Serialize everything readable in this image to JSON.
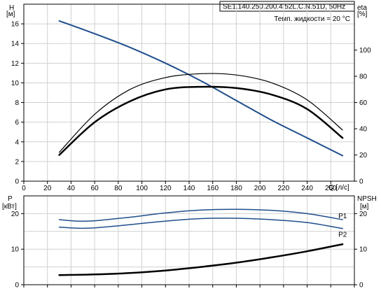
{
  "chart_data": [
    {
      "type": "line",
      "title": "SE1.140.250.200.4.52L.C.N.51D, 50Hz",
      "annotation": "Темп. жидкости = 20 °C",
      "left_axis": {
        "label_top": "H",
        "label_unit": "[м]",
        "range": [
          0,
          18
        ],
        "ticks": [
          "0",
          "2",
          "4",
          "6",
          "8",
          "10",
          "12",
          "14",
          "16"
        ]
      },
      "right_axis": {
        "label_top": "eta",
        "label_unit": "[%]",
        "range": [
          0,
          135
        ],
        "ticks": [
          "0",
          "20",
          "40",
          "60",
          "80",
          "100"
        ]
      },
      "x_axis": {
        "label": "Q [л/с]",
        "range": [
          0,
          280
        ],
        "ticks": [
          "0",
          "20",
          "40",
          "60",
          "80",
          "100",
          "120",
          "140",
          "160",
          "180",
          "200",
          "220",
          "240",
          "260"
        ]
      },
      "grid": true,
      "series": [
        {
          "axis": "left",
          "color": "#1f4e8c",
          "width": 2,
          "x": [
            30,
            60,
            90,
            120,
            150,
            180,
            210,
            240,
            270
          ],
          "y": [
            16.3,
            15.0,
            13.6,
            12.0,
            10.2,
            8.2,
            6.2,
            4.4,
            2.6
          ]
        },
        {
          "axis": "right",
          "color": "#000000",
          "width": 1.2,
          "x": [
            30,
            60,
            90,
            120,
            150,
            180,
            210,
            240,
            270
          ],
          "y": [
            22,
            51,
            70,
            79,
            82,
            81,
            75,
            62,
            39
          ]
        },
        {
          "axis": "right",
          "color": "#000000",
          "width": 2.5,
          "x": [
            30,
            60,
            90,
            120,
            150,
            180,
            210,
            240,
            270
          ],
          "y": [
            20,
            45,
            61,
            70,
            72,
            71,
            66,
            55,
            33
          ]
        }
      ]
    },
    {
      "type": "line",
      "left_axis": {
        "label_top": "P",
        "label_unit": "[кВт]",
        "range": [
          0,
          25
        ],
        "ticks": [
          "0",
          "10",
          "20"
        ]
      },
      "right_axis": {
        "label_top": "NPSH",
        "label_unit": "[м]",
        "range": [
          0,
          25
        ],
        "ticks": [
          "0",
          "10",
          "20"
        ]
      },
      "x_axis": {
        "range": [
          0,
          280
        ]
      },
      "grid": true,
      "series": [
        {
          "name": "P1",
          "axis": "left",
          "color": "#1f4e8c",
          "width": 1.5,
          "x": [
            30,
            45,
            60,
            90,
            120,
            150,
            180,
            210,
            240,
            270
          ],
          "y": [
            18.3,
            17.9,
            18.0,
            19.0,
            20.2,
            21.0,
            21.2,
            20.9,
            20.0,
            18.3
          ]
        },
        {
          "name": "P2",
          "axis": "left",
          "color": "#1f4e8c",
          "width": 1.5,
          "x": [
            30,
            45,
            60,
            90,
            120,
            150,
            180,
            210,
            240,
            270
          ],
          "y": [
            16.2,
            15.9,
            16.0,
            16.9,
            17.9,
            18.6,
            18.7,
            18.3,
            17.5,
            15.8
          ]
        },
        {
          "axis": "right",
          "color": "#000000",
          "width": 2.5,
          "x": [
            30,
            60,
            90,
            120,
            150,
            180,
            210,
            240,
            270
          ],
          "y": [
            2.7,
            2.9,
            3.3,
            4.0,
            5.0,
            6.2,
            7.7,
            9.4,
            11.4
          ]
        }
      ]
    }
  ]
}
